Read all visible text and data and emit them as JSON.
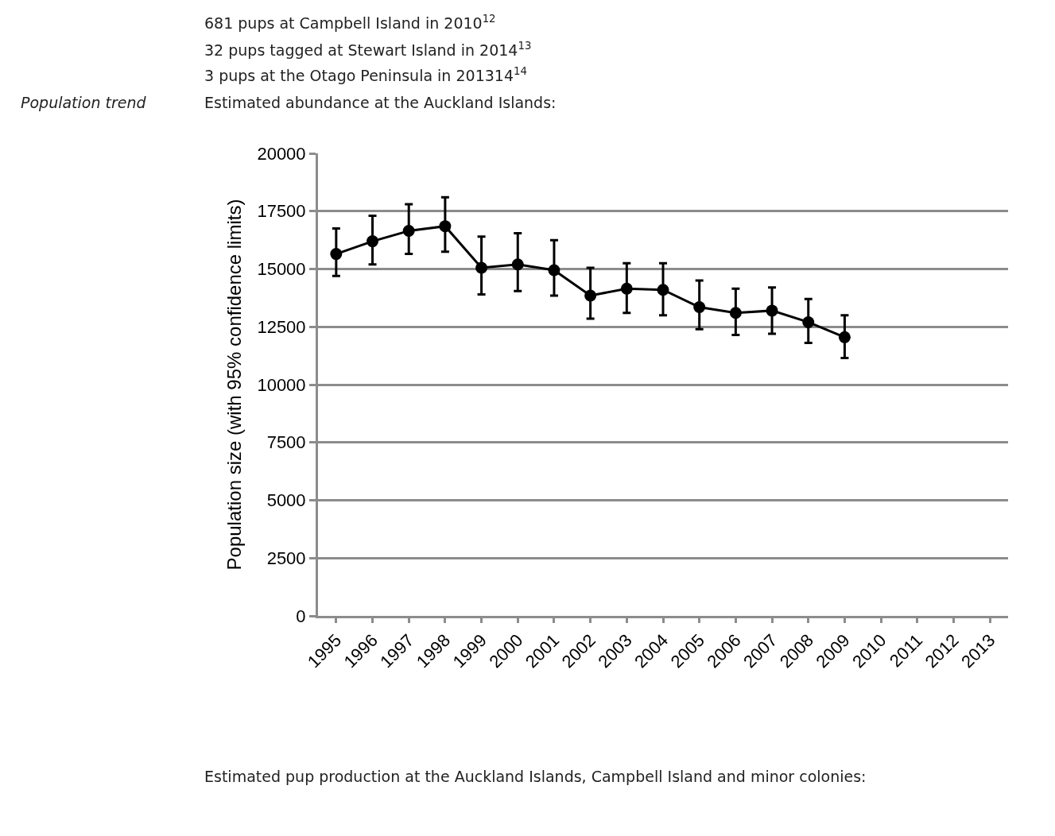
{
  "chart_data": {
    "type": "line",
    "title": "Estimated abundance at the Auckland Islands:",
    "ylabel": "Population size (with 95% confidence limits)",
    "categories": [
      "1995",
      "1996",
      "1997",
      "1998",
      "1999",
      "2000",
      "2001",
      "2002",
      "2003",
      "2004",
      "2005",
      "2006",
      "2007",
      "2008",
      "2009",
      "2010",
      "2011",
      "2012",
      "2013"
    ],
    "series": [
      {
        "color": "#000000",
        "values": [
          15650,
          16200,
          16650,
          16850,
          15050,
          15200,
          14950,
          13850,
          14150,
          14100,
          13350,
          13100,
          13200,
          12700,
          12050,
          null,
          null,
          null,
          null
        ],
        "errors": [
          [
            14700,
            16750
          ],
          [
            15200,
            17300
          ],
          [
            15650,
            17800
          ],
          [
            15750,
            18100
          ],
          [
            13900,
            16400
          ],
          [
            14050,
            16550
          ],
          [
            13850,
            16250
          ],
          [
            12850,
            15050
          ],
          [
            13100,
            15250
          ],
          [
            13000,
            15250
          ],
          [
            12400,
            14500
          ],
          [
            12150,
            14150
          ],
          [
            12200,
            14200
          ],
          [
            11800,
            13700
          ],
          [
            11150,
            13000
          ],
          null,
          null,
          null,
          null
        ]
      }
    ],
    "ylim": [
      0,
      20000
    ],
    "yticks": [
      0,
      2500,
      5000,
      7500,
      10000,
      12500,
      15000,
      17500,
      20000
    ],
    "grid": "y",
    "marker": "circle",
    "line_style": "solid",
    "legend": false,
    "annotations": [
      "681 pups at Campbell Island in 2010$^{12}$",
      "32 pups tagged at Stewart Island in 2014$^{13}$",
      "3 pups at the Otago Peninsula in 201314$^{14}$",
      "Population trend",
      "Estimated pup production at the Auckland Islands, Campbell Island and minor colonies:"
    ]
  }
}
